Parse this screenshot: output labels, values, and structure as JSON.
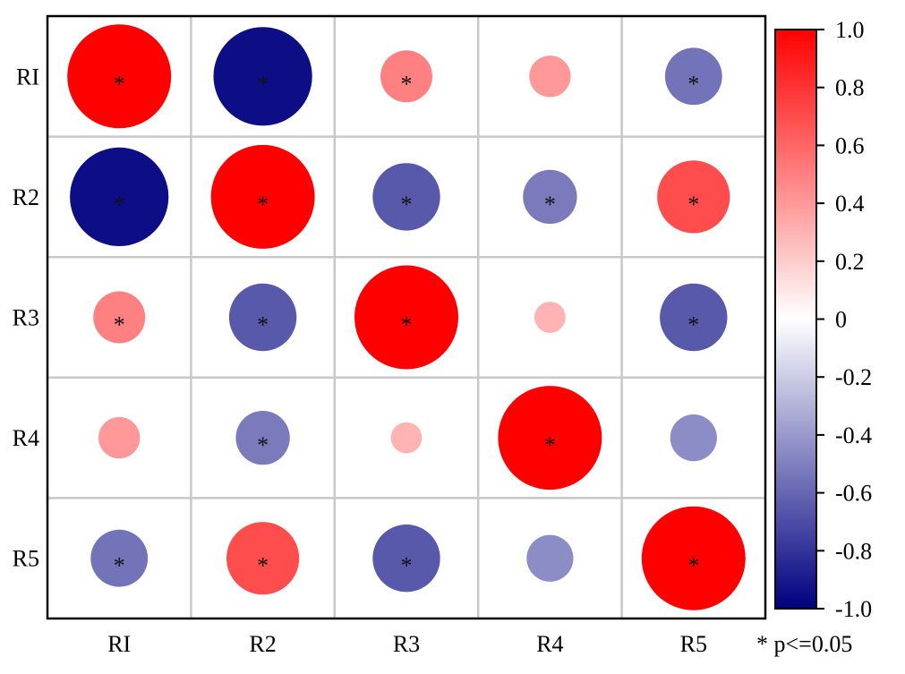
{
  "chart_data": {
    "type": "heatmap",
    "subtype": "correlation-circles",
    "rows": [
      "RI",
      "R2",
      "R3",
      "R4",
      "R5"
    ],
    "cols": [
      "RI",
      "R2",
      "R3",
      "R4",
      "R5"
    ],
    "values": [
      [
        1.0,
        -0.95,
        0.5,
        0.4,
        -0.55
      ],
      [
        -0.95,
        1.0,
        -0.65,
        -0.52,
        0.7
      ],
      [
        0.5,
        -0.65,
        1.0,
        0.3,
        -0.65
      ],
      [
        0.4,
        -0.52,
        0.3,
        1.0,
        -0.45
      ],
      [
        -0.55,
        0.7,
        -0.65,
        -0.45,
        1.0
      ]
    ],
    "significant": [
      [
        true,
        true,
        true,
        false,
        true
      ],
      [
        true,
        true,
        true,
        true,
        true
      ],
      [
        true,
        true,
        true,
        false,
        true
      ],
      [
        false,
        true,
        false,
        true,
        false
      ],
      [
        true,
        true,
        true,
        false,
        true
      ]
    ],
    "significance_marker": "*",
    "significance_note": "* p<=0.05",
    "colorbar": {
      "range": [
        -1.0,
        1.0
      ],
      "ticks": [
        "1.0",
        "0.8",
        "0.6",
        "0.4",
        "0.2",
        "0",
        "-0.2",
        "-0.4",
        "-0.6",
        "-0.8",
        "-1.0"
      ],
      "tick_values": [
        1.0,
        0.8,
        0.6,
        0.4,
        0.2,
        0,
        -0.2,
        -0.4,
        -0.6,
        -0.8,
        -1.0
      ],
      "colors": {
        "positive": "#ff0000",
        "zero": "#ffffff",
        "negative": "#000080"
      },
      "placement": "right"
    },
    "grid": true,
    "grid_color": "#c8c8c8"
  }
}
